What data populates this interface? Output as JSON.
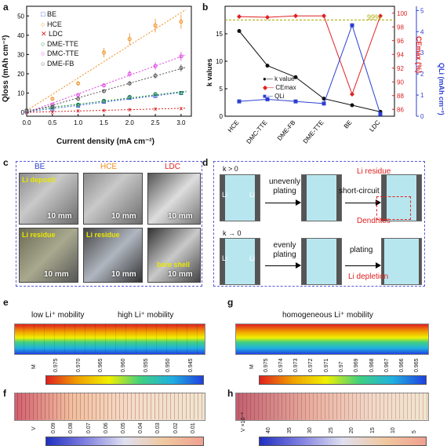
{
  "panel_a": {
    "label": "a",
    "ylabel": "Qloss (mAh cm⁻²)",
    "xlabel": "Current density (mA cm⁻²)",
    "xticks": [
      "0.0",
      "0.5",
      "1.0",
      "1.5",
      "2.0",
      "2.5",
      "3.0"
    ],
    "yticks": [
      "0",
      "10",
      "20",
      "30",
      "40",
      "50"
    ],
    "legend": [
      {
        "name": "BE",
        "color": "#3a5fd9",
        "marker": "□"
      },
      {
        "name": "HCE",
        "color": "#f08a1c",
        "marker": "○"
      },
      {
        "name": "LDC",
        "color": "#e02020",
        "marker": "✕"
      },
      {
        "name": "DME-TTE",
        "color": "#1a8a3a",
        "marker": "○"
      },
      {
        "name": "DMC-TTE",
        "color": "#e040e0",
        "marker": "○"
      },
      {
        "name": "DME-FB",
        "color": "#555555",
        "marker": "○"
      }
    ]
  },
  "panel_b": {
    "label": "b",
    "ylabel_left": "k values",
    "ylabel_right1": "CEmax (%)",
    "ylabel_right2": "QLi (mAh cm⁻²)",
    "reference_label": "99%",
    "categories": [
      "HCE",
      "DMC-TTE",
      "DME-FB",
      "DME-TTE",
      "BE",
      "LDC"
    ],
    "left_ticks": [
      "0",
      "5",
      "10",
      "15"
    ],
    "right1_ticks": [
      "86",
      "88",
      "90",
      "92",
      "94",
      "96",
      "98",
      "100"
    ],
    "right2_ticks": [
      "0",
      "1",
      "2",
      "3",
      "4",
      "5"
    ],
    "legend": [
      "k value",
      "CEmax",
      "QLi"
    ]
  },
  "chart_data": [
    {
      "type": "scatter",
      "xlabel": "Current density (mA cm⁻²)",
      "ylabel": "Qloss (mAh cm⁻²)",
      "xlim": [
        0,
        3.2
      ],
      "ylim": [
        -2,
        55
      ],
      "x": [
        0,
        0.5,
        1.0,
        1.5,
        2.0,
        2.5,
        3.0
      ],
      "series": [
        {
          "name": "BE",
          "values": [
            0.5,
            1.5,
            3.5,
            5.5,
            7.5,
            8.5,
            10
          ]
        },
        {
          "name": "HCE",
          "values": [
            1,
            7,
            15,
            31,
            38,
            45,
            47
          ]
        },
        {
          "name": "LDC",
          "values": [
            0,
            0.3,
            0.8,
            1,
            1.5,
            1.8,
            2
          ]
        },
        {
          "name": "DME-TTE",
          "values": [
            1,
            2.5,
            4,
            6,
            8,
            9.5,
            10
          ]
        },
        {
          "name": "DMC-TTE",
          "values": [
            1,
            4,
            9,
            14,
            20,
            24,
            29
          ]
        },
        {
          "name": "DME-FB",
          "values": [
            1,
            3,
            7,
            11,
            15,
            19,
            23
          ]
        }
      ]
    },
    {
      "type": "line",
      "categories": [
        "HCE",
        "DMC-TTE",
        "DME-FB",
        "DME-TTE",
        "BE",
        "LDC"
      ],
      "series": [
        {
          "name": "k value",
          "axis": "k values",
          "values": [
            15.5,
            9.2,
            7.1,
            3.2,
            2.0,
            0.8
          ]
        },
        {
          "name": "CEmax",
          "axis": "CEmax (%)",
          "values": [
            99.5,
            99.4,
            99.6,
            99.6,
            88.2,
            99.6
          ]
        },
        {
          "name": "QLi",
          "axis": "QLi (mAh cm⁻²)",
          "values": [
            0.7,
            0.8,
            0.7,
            0.6,
            4.3,
            0.1
          ]
        }
      ],
      "left_ylim": [
        0,
        20
      ],
      "right1_ylim": [
        85,
        101
      ],
      "right2_ylim": [
        0,
        5.2
      ],
      "reference_line": 99
    }
  ],
  "panel_c": {
    "label": "c",
    "columns": [
      "BE",
      "HCE",
      "LDC"
    ],
    "column_colors": [
      "#2b3fd0",
      "#f08a1c",
      "#e02020"
    ],
    "top_annotation": "Li deposit",
    "bottom_annotations": [
      "Li residue",
      "Li residue",
      "bare shell"
    ],
    "scale": "10 mm"
  },
  "panel_d": {
    "label": "d",
    "row1_k": "k > 0",
    "row2_k": "k → 0",
    "row1_steps": [
      "unevenly plating",
      "short-circuit"
    ],
    "row2_steps": [
      "evenly plating",
      "plating"
    ],
    "li": "Li",
    "residue": "Li residue",
    "dendrites": "Dendrites",
    "depletion": "Li depletion"
  },
  "panel_e": {
    "label": "e",
    "left_title": "low Li⁺ mobility",
    "right_title": "high Li⁺ mobility",
    "unit": "M",
    "ticks": [
      "0.975",
      "0.970",
      "0.965",
      "0.960",
      "0.955",
      "0.950",
      "0.945"
    ]
  },
  "panel_f": {
    "label": "f",
    "unit": "V",
    "ticks": [
      "0.09",
      "0.08",
      "0.07",
      "0.06",
      "0.05",
      "0.04",
      "0.03",
      "0.02",
      "0.01"
    ]
  },
  "panel_g": {
    "label": "g",
    "title": "homogeneous Li⁺ mobility",
    "unit": "M",
    "ticks": [
      "0.975",
      "0.974",
      "0.973",
      "0.972",
      "0.971",
      "0.97",
      "0.969",
      "0.968",
      "0.967",
      "0.966",
      "0.965"
    ]
  },
  "panel_h": {
    "label": "h",
    "unit": "V",
    "scale_note": "×10⁻³",
    "ticks": [
      "40",
      "35",
      "30",
      "25",
      "20",
      "15",
      "10",
      "5"
    ]
  },
  "colors": {
    "blue": "#2b3fd0",
    "orange": "#f08a1c",
    "red": "#e02020",
    "black": "#111111",
    "olive": "#a8a800"
  }
}
